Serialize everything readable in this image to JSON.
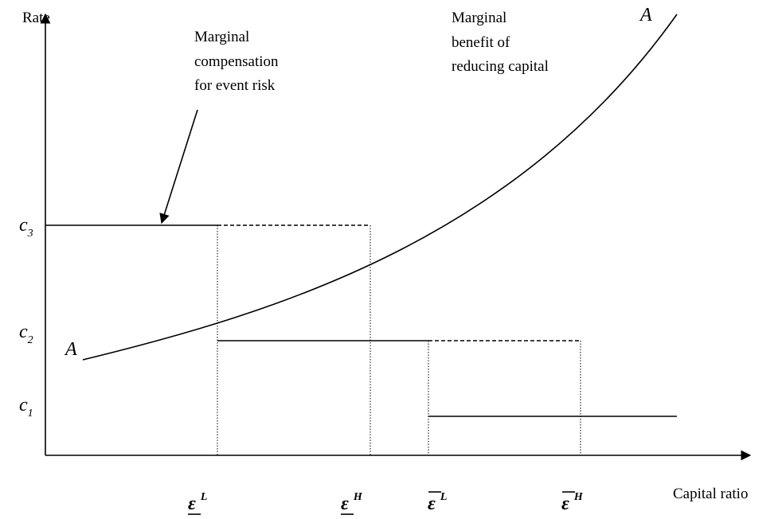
{
  "axes": {
    "y_label": "Rate",
    "x_label": "Capital ratio"
  },
  "annotations": {
    "compensation": {
      "lines": [
        "Marginal",
        "compensation",
        "for event risk"
      ]
    },
    "benefit": {
      "lines": [
        "Marginal",
        "benefit of",
        "reducing capital"
      ]
    },
    "curve_label_top": "A",
    "curve_label_bottom": "A"
  },
  "y_levels": [
    {
      "base": "c",
      "sub": "3"
    },
    {
      "base": "c",
      "sub": "2"
    },
    {
      "base": "c",
      "sub": "1"
    }
  ],
  "x_levels": [
    {
      "base": "ε",
      "sup": "L"
    },
    {
      "base": "ε",
      "sup": "H"
    },
    {
      "base": "ε",
      "sup": "L"
    },
    {
      "base": "ε",
      "sup": "H"
    }
  ]
}
